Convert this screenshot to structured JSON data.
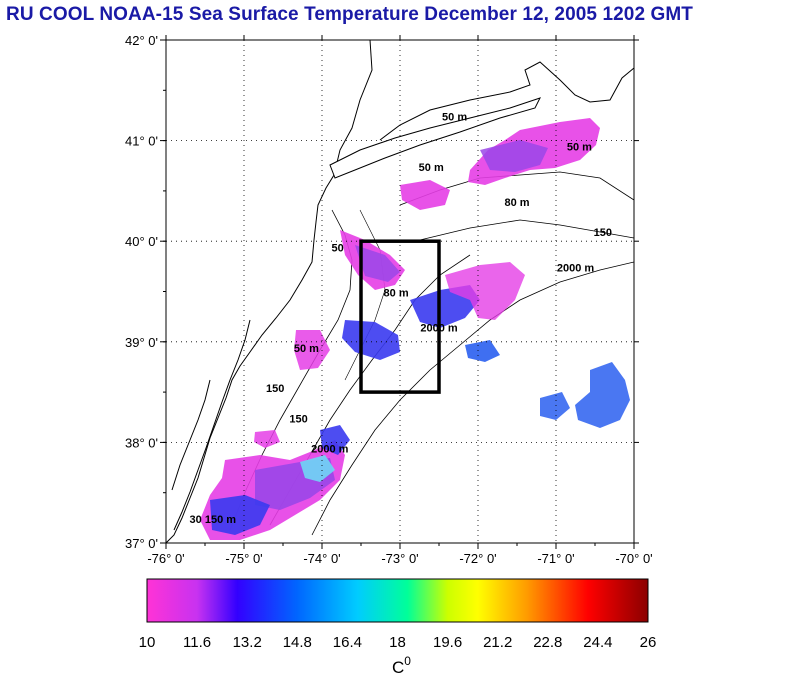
{
  "title": "RU COOL  NOAA-15 Sea Surface Temperature December 12, 2005 1202 GMT",
  "map": {
    "lon_ticks": [
      "-76° 0'",
      "-75° 0'",
      "-74° 0'",
      "-73° 0'",
      "-72° 0'",
      "-71° 0'",
      "-70° 0'"
    ],
    "lat_ticks": [
      "42° 0'",
      "41° 0'",
      "40° 0'",
      "39° 0'",
      "38° 0'",
      "37° 0'"
    ],
    "lon_range": [
      -76,
      -70
    ],
    "lat_range": [
      37,
      42
    ],
    "study_box": {
      "lon": [
        -73.5,
        -72.5
      ],
      "lat": [
        38.5,
        40.0
      ]
    },
    "contour_labels": [
      {
        "text": "50 m",
        "lon": -72.3,
        "lat": 41.2
      },
      {
        "text": "50 m",
        "lon": -72.6,
        "lat": 40.7
      },
      {
        "text": "50 m",
        "lon": -70.7,
        "lat": 40.9
      },
      {
        "text": "80 m",
        "lon": -71.5,
        "lat": 40.35
      },
      {
        "text": "150",
        "lon": -70.4,
        "lat": 40.05
      },
      {
        "text": "2000 m",
        "lon": -70.75,
        "lat": 39.7
      },
      {
        "text": "2000 m",
        "lon": -72.5,
        "lat": 39.1
      },
      {
        "text": "80 m",
        "lon": -73.05,
        "lat": 39.45
      },
      {
        "text": "50",
        "lon": -73.8,
        "lat": 39.9
      },
      {
        "text": "50 m",
        "lon": -74.2,
        "lat": 38.9
      },
      {
        "text": "150",
        "lon": -74.6,
        "lat": 38.5
      },
      {
        "text": "150",
        "lon": -74.3,
        "lat": 38.2
      },
      {
        "text": "2000 m",
        "lon": -73.9,
        "lat": 37.9
      },
      {
        "text": "30 150 m",
        "lon": -75.4,
        "lat": 37.2
      }
    ]
  },
  "colorbar": {
    "min": 10,
    "max": 26,
    "tick_labels": [
      "10",
      "11.6",
      "13.2",
      "14.8",
      "16.4",
      "18",
      "19.6",
      "21.2",
      "22.8",
      "24.4",
      "26"
    ],
    "unit": "C",
    "unit_sup": "0",
    "colors": [
      "#ff33d6",
      "#c832f0",
      "#3300ff",
      "#0066ff",
      "#00ccff",
      "#00ff99",
      "#ccff00",
      "#ffcc00",
      "#ff6600",
      "#ff0000",
      "#8b0000"
    ]
  },
  "sst_colors": {
    "magenta": "#e53ee6",
    "violet": "#9a46e8",
    "blue": "#3a3af0",
    "mid_blue": "#2a5ff0",
    "cyan": "#6fd6f5"
  }
}
